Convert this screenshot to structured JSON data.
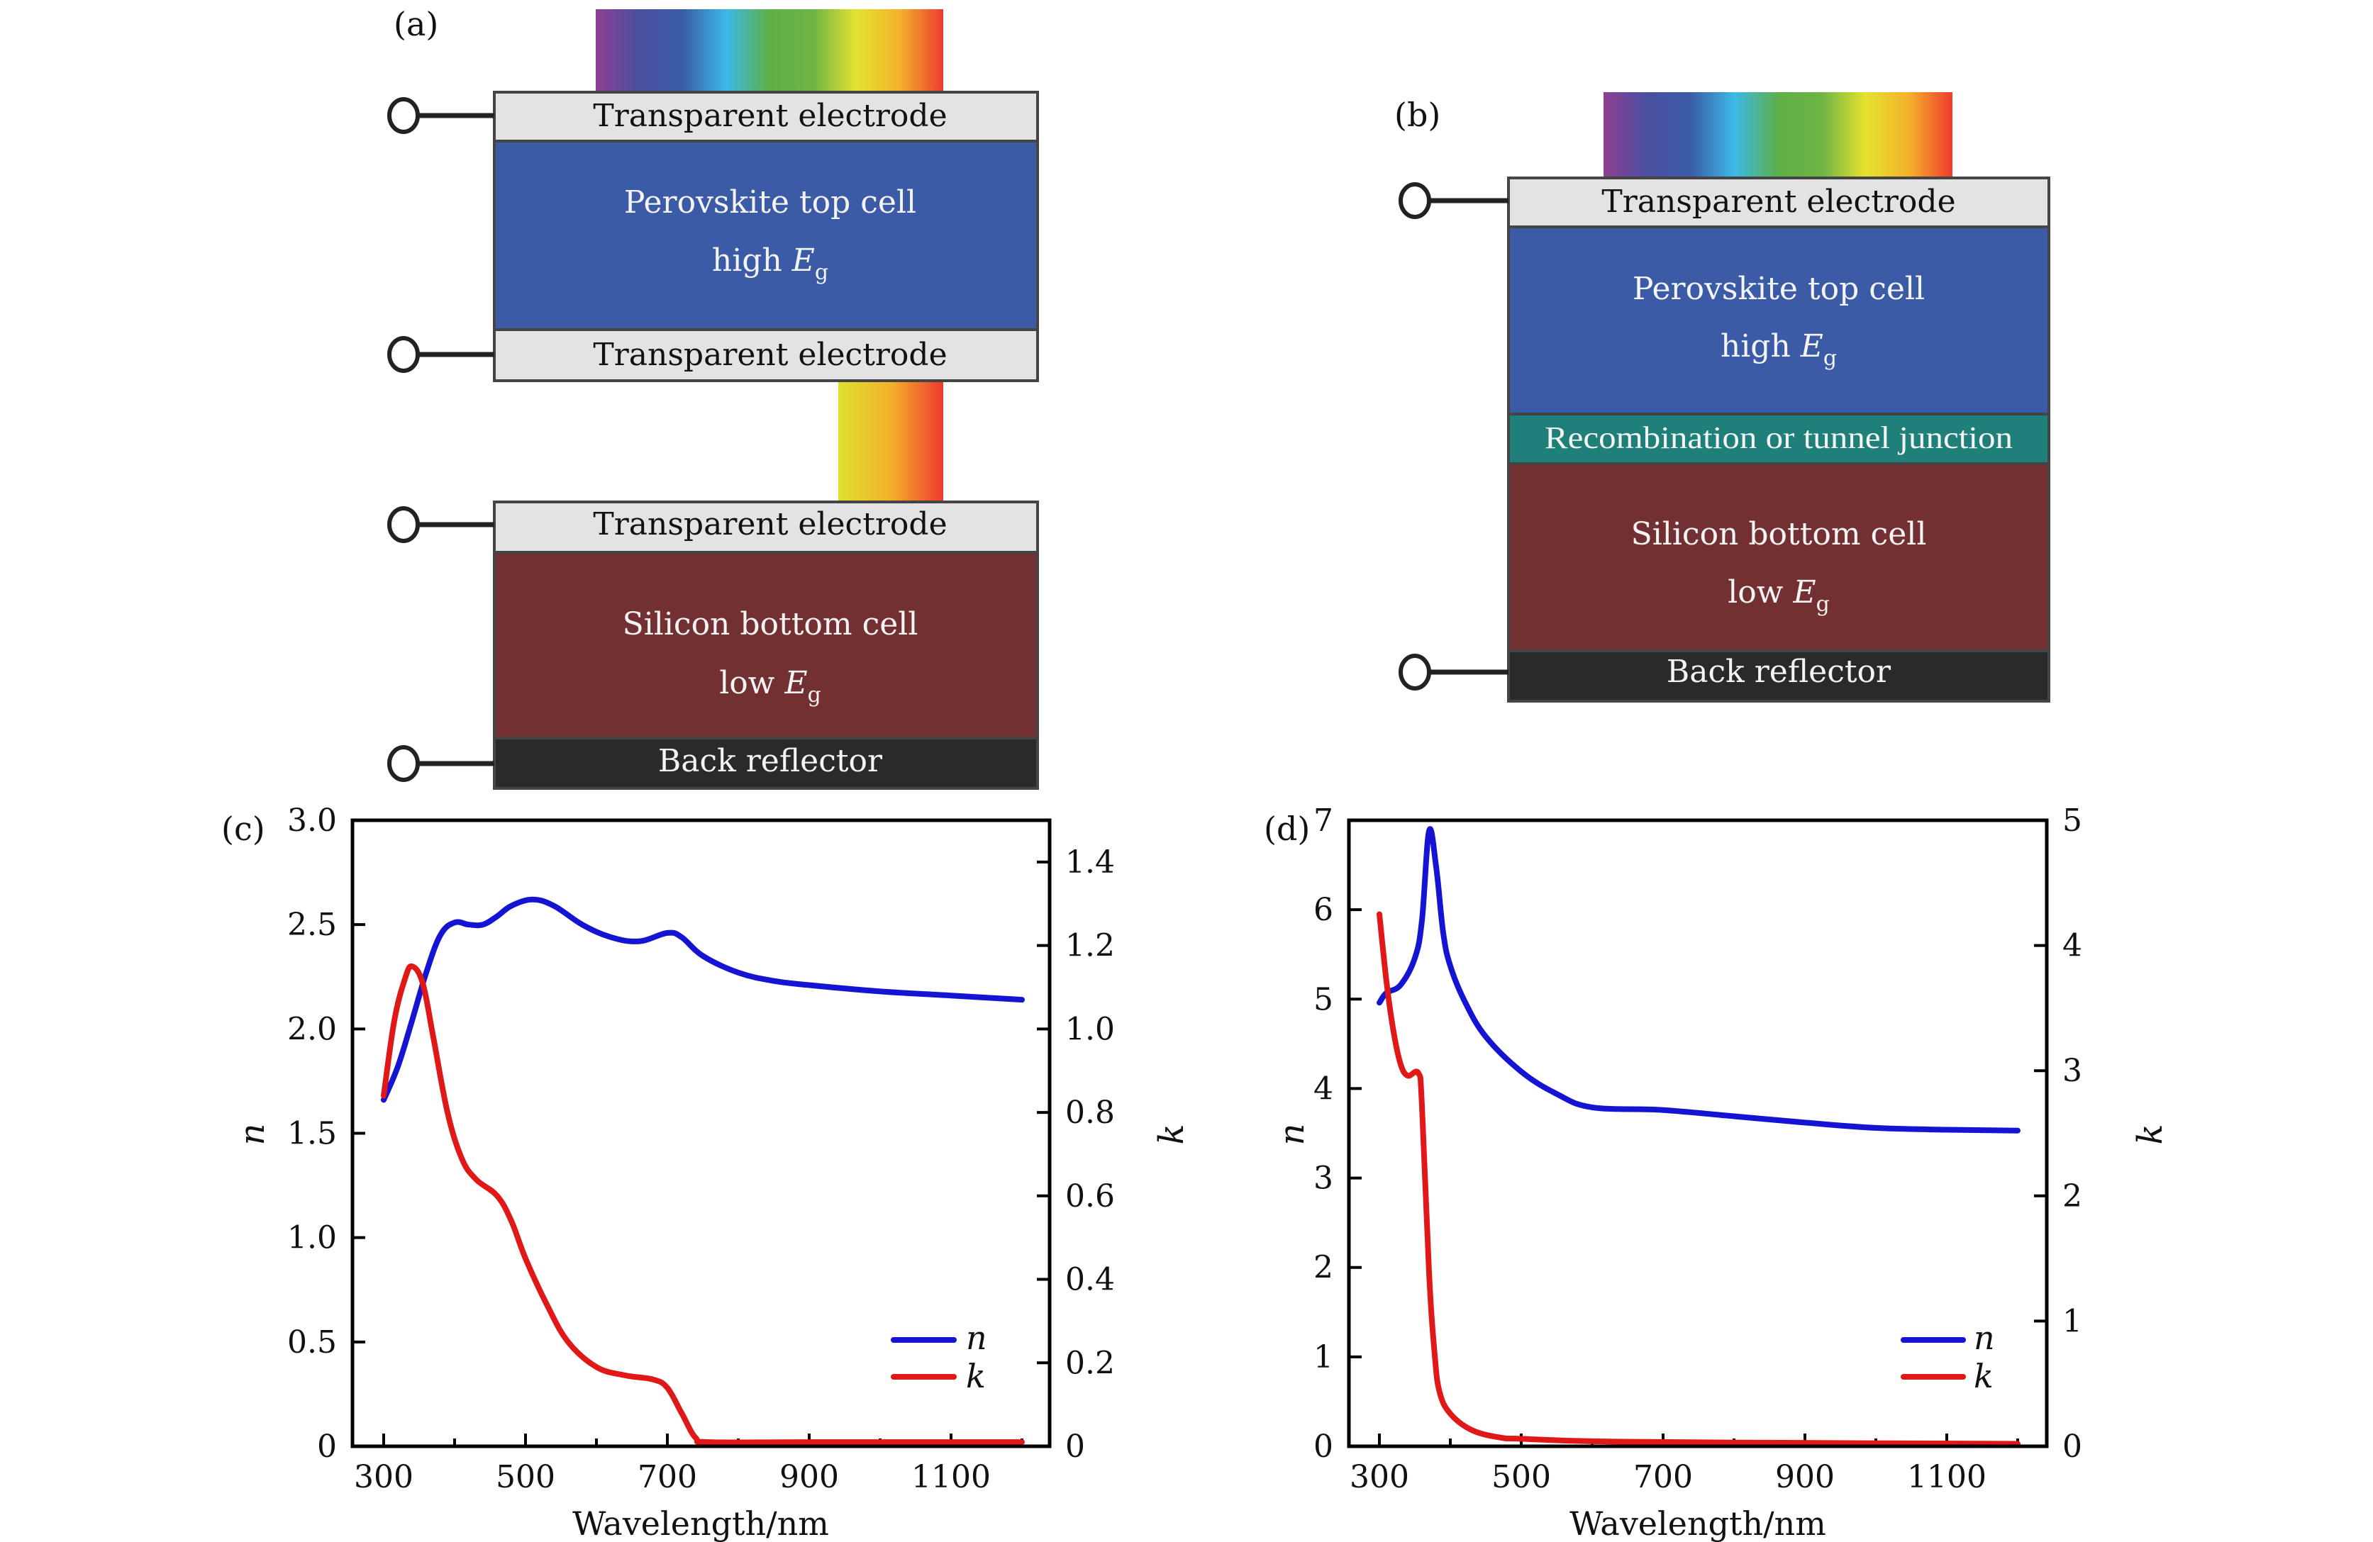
{
  "colors": {
    "electrode": "#e3e3e3",
    "perovskite": "#3c5ba6",
    "junction": "#1f807a",
    "silicon": "#733033",
    "reflector": "#2a2a2a",
    "n_series": "#1414d2",
    "k_series": "#e01818"
  },
  "spectrum_stops": [
    "#8e3f94",
    "#4a4f9f",
    "#3a5da6",
    "#3cb9e8",
    "#5fb048",
    "#6db446",
    "#e5e22e",
    "#f3b22b",
    "#ee3a2e"
  ],
  "spectrum_red_stops": [
    "#dfe12d",
    "#f3b22b",
    "#ee3a2e"
  ],
  "panel_a": {
    "label": "(a)",
    "layers": [
      {
        "id": "top-electrode",
        "text": "Transparent electrode"
      },
      {
        "id": "perovskite",
        "line1": "Perovskite top cell",
        "line2_prefix": "high ",
        "line2_var": "E",
        "line2_sub": "g"
      },
      {
        "id": "mid-electrode",
        "text": "Transparent electrode"
      },
      {
        "id": "bottom-top-electrode",
        "text": "Transparent electrode"
      },
      {
        "id": "silicon",
        "line1": "Silicon bottom cell",
        "line2_prefix": "low ",
        "line2_var": "E",
        "line2_sub": "g"
      },
      {
        "id": "reflector",
        "text": "Back reflector"
      }
    ]
  },
  "panel_b": {
    "label": "(b)",
    "layers": [
      {
        "id": "top-electrode",
        "text": "Transparent electrode"
      },
      {
        "id": "perovskite",
        "line1": "Perovskite top cell",
        "line2_prefix": "high ",
        "line2_var": "E",
        "line2_sub": "g"
      },
      {
        "id": "junction",
        "text": "Recombination or tunnel junction"
      },
      {
        "id": "silicon",
        "line1": "Silicon bottom cell",
        "line2_prefix": "low ",
        "line2_var": "E",
        "line2_sub": "g"
      },
      {
        "id": "reflector",
        "text": "Back reflector"
      }
    ]
  },
  "chart_data": [
    {
      "panel": "(c)",
      "type": "line",
      "title": "",
      "xlabel": "Wavelength/nm",
      "ylabel": "n",
      "ylabel_right": "k",
      "xlim": [
        255,
        1255
      ],
      "xticks": [
        300,
        500,
        700,
        900,
        1100
      ],
      "xticks_minor": [
        400,
        600,
        800,
        1000,
        1200
      ],
      "ylim": [
        0,
        3.0
      ],
      "yticks": [
        0,
        0.5,
        1.0,
        1.5,
        2.0,
        2.5,
        3.0
      ],
      "ytick_labels": [
        "0",
        "0.5",
        "1.0",
        "1.5",
        "2.0",
        "2.5",
        "3.0"
      ],
      "ylim_right": [
        0,
        1.5
      ],
      "yticks_right": [
        0,
        0.2,
        0.4,
        0.6,
        0.8,
        1.0,
        1.2,
        1.4
      ],
      "ytick_labels_right": [
        "0",
        "0.2",
        "0.4",
        "0.6",
        "0.8",
        "1.0",
        "1.2",
        "1.4"
      ],
      "grid": false,
      "legend": "bottom-right",
      "series": [
        {
          "name": "n",
          "axis": "left",
          "color": "#1414d2",
          "x": [
            300,
            320,
            340,
            360,
            380,
            400,
            420,
            440,
            460,
            480,
            510,
            540,
            580,
            620,
            660,
            700,
            720,
            750,
            800,
            850,
            900,
            1000,
            1100,
            1200
          ],
          "y": [
            1.66,
            1.82,
            2.04,
            2.27,
            2.45,
            2.51,
            2.5,
            2.5,
            2.54,
            2.59,
            2.62,
            2.59,
            2.5,
            2.44,
            2.42,
            2.46,
            2.44,
            2.35,
            2.27,
            2.23,
            2.21,
            2.18,
            2.16,
            2.14
          ]
        },
        {
          "name": "k",
          "axis": "right",
          "color": "#e01818",
          "x": [
            300,
            315,
            330,
            340,
            355,
            370,
            390,
            410,
            430,
            460,
            480,
            500,
            530,
            560,
            600,
            640,
            680,
            700,
            720,
            740,
            760,
            900,
            1200
          ],
          "y": [
            0.84,
            1.02,
            1.12,
            1.15,
            1.11,
            0.98,
            0.8,
            0.69,
            0.64,
            0.6,
            0.54,
            0.45,
            0.34,
            0.25,
            0.19,
            0.17,
            0.16,
            0.14,
            0.08,
            0.02,
            0.01,
            0.01,
            0.01
          ]
        }
      ]
    },
    {
      "panel": "(d)",
      "type": "line",
      "title": "",
      "xlabel": "Wavelength/nm",
      "ylabel": "n",
      "ylabel_right": "k",
      "xlim": [
        255,
        1255
      ],
      "xticks": [
        300,
        500,
        700,
        900,
        1100
      ],
      "xticks_minor": [
        400,
        600,
        800,
        1000,
        1200
      ],
      "ylim": [
        0,
        7
      ],
      "yticks": [
        0,
        1,
        2,
        3,
        4,
        5,
        6,
        7
      ],
      "ytick_labels": [
        "0",
        "1",
        "2",
        "3",
        "4",
        "5",
        "6",
        "7"
      ],
      "ylim_right": [
        0,
        5
      ],
      "yticks_right": [
        0,
        1,
        2,
        3,
        4,
        5
      ],
      "ytick_labels_right": [
        "0",
        "1",
        "2",
        "3",
        "4",
        "5"
      ],
      "grid": false,
      "legend": "bottom-right",
      "series": [
        {
          "name": "n",
          "axis": "left",
          "color": "#1414d2",
          "x": [
            300,
            310,
            330,
            350,
            360,
            370,
            380,
            390,
            400,
            420,
            450,
            500,
            550,
            600,
            700,
            800,
            900,
            1000,
            1100,
            1200
          ],
          "y": [
            4.96,
            5.07,
            5.16,
            5.46,
            5.88,
            6.88,
            6.48,
            5.74,
            5.37,
            4.98,
            4.58,
            4.19,
            3.94,
            3.79,
            3.76,
            3.69,
            3.62,
            3.56,
            3.54,
            3.53
          ]
        },
        {
          "name": "k",
          "axis": "right",
          "color": "#e01818",
          "x": [
            300,
            310,
            320,
            330,
            340,
            355,
            360,
            370,
            378,
            385,
            400,
            430,
            470,
            500,
            600,
            800,
            1200
          ],
          "y": [
            4.25,
            3.71,
            3.31,
            3.05,
            2.96,
            2.98,
            2.72,
            1.39,
            0.73,
            0.43,
            0.26,
            0.13,
            0.07,
            0.06,
            0.04,
            0.03,
            0.02
          ]
        }
      ]
    }
  ]
}
